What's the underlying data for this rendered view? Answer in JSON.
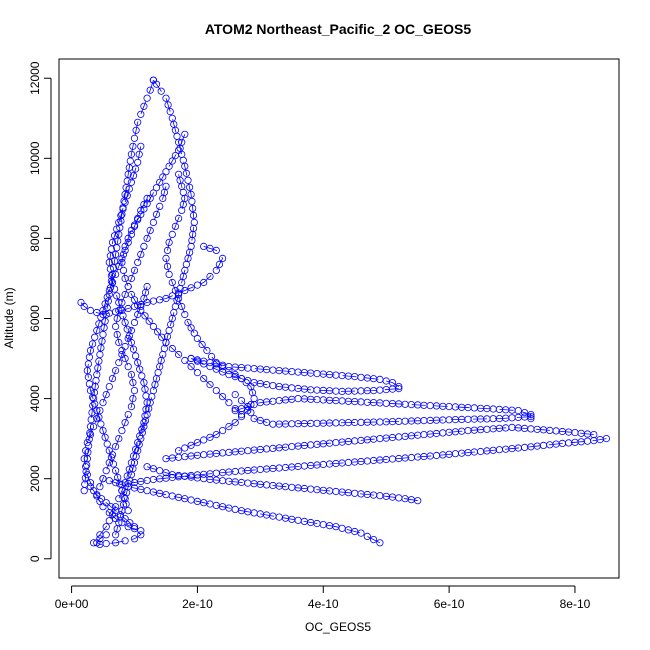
{
  "chart_data": {
    "type": "scatter",
    "title": "ATOM2 Northeast_Pacific_2 OC_GEOS5",
    "xlabel": "OC_GEOS5",
    "ylabel": "Altitude (m)",
    "xlim": [
      -2e-11,
      8.7e-10
    ],
    "ylim": [
      -480,
      12480
    ],
    "x_ticks": [
      0,
      2e-10,
      4e-10,
      6e-10,
      8e-10
    ],
    "x_tick_labels": [
      "0e+00",
      "2e-10",
      "4e-10",
      "6e-10",
      "8e-10"
    ],
    "y_ticks": [
      0,
      2000,
      4000,
      6000,
      8000,
      10000,
      12000
    ],
    "y_tick_labels": [
      "0",
      "2000",
      "4000",
      "6000",
      "8000",
      "10000",
      "12000"
    ],
    "marker": "open-circle",
    "line_style": "dashed",
    "color": "#0000ff",
    "grid": false,
    "legend": "none",
    "series": [
      {
        "x": [
          4.9e-10,
          4.8e-10,
          4.7e-10,
          4.6e-10,
          4.4e-10,
          4.2e-10,
          3.9e-10,
          3.6e-10,
          3.3e-10,
          3e-10,
          2.7e-10,
          2.4e-10,
          2.1e-10,
          1.8e-10,
          1.5e-10,
          1.2e-10,
          9e-11,
          7e-11,
          5e-11
        ],
        "y": [
          400,
          480,
          560,
          640,
          720,
          800,
          880,
          960,
          1040,
          1120,
          1200,
          1300,
          1400,
          1500,
          1600,
          1700,
          1800,
          1900,
          2000
        ]
      },
      {
        "x": [
          5.5e-10,
          5.3e-10,
          5e-10,
          4.6e-10,
          4.2e-10,
          3.8e-10,
          3.4e-10,
          3e-10,
          2.6e-10,
          2.2e-10,
          1.9e-10,
          1.6e-10,
          1.4e-10,
          1.2e-10
        ],
        "y": [
          1450,
          1500,
          1560,
          1620,
          1680,
          1740,
          1800,
          1860,
          1920,
          1980,
          2040,
          2100,
          2200,
          2300
        ]
      },
      {
        "x": [
          8.5e-10,
          8.3e-10,
          7.8e-10,
          7.2e-10,
          6.5e-10,
          5.8e-10,
          5e-10,
          4.2e-10,
          3.4e-10,
          2.6e-10,
          1.9e-10,
          1.3e-10,
          9e-11
        ],
        "y": [
          3000,
          2950,
          2880,
          2780,
          2680,
          2580,
          2480,
          2380,
          2280,
          2180,
          2080,
          1980,
          1880
        ]
      },
      {
        "x": [
          8.3e-10,
          8e-10,
          7.5e-10,
          7e-10,
          6.3e-10,
          5.6e-10,
          4.9e-10,
          4.2e-10,
          3.5e-10,
          2.8e-10,
          2.1e-10,
          1.5e-10
        ],
        "y": [
          3100,
          3150,
          3220,
          3280,
          3200,
          3100,
          3000,
          2900,
          2800,
          2700,
          2600,
          2500
        ]
      },
      {
        "x": [
          7.3e-10,
          7.3e-10,
          7.1e-10,
          6.6e-10,
          6e-10,
          5.4e-10,
          4.8e-10,
          4.2e-10,
          3.6e-10,
          3e-10,
          2.6e-10
        ],
        "y": [
          3500,
          3600,
          3700,
          3750,
          3800,
          3850,
          3900,
          3950,
          4000,
          3900,
          3700
        ]
      },
      {
        "x": [
          7.3e-10,
          6.8e-10,
          6.2e-10,
          5.6e-10,
          5e-10,
          4.4e-10,
          3.8e-10,
          3.2e-10,
          2.9e-10,
          2.8e-10,
          2.6e-10
        ],
        "y": [
          3550,
          3500,
          3480,
          3450,
          3420,
          3400,
          3380,
          3360,
          3500,
          3800,
          4100
        ]
      },
      {
        "x": [
          5.2e-10,
          5.1e-10,
          4.9e-10,
          4.5e-10,
          4.1e-10,
          3.7e-10,
          3.3e-10,
          2.9e-10,
          2.5e-10,
          2.2e-10,
          1.9e-10
        ],
        "y": [
          4300,
          4400,
          4480,
          4550,
          4600,
          4650,
          4700,
          4750,
          4800,
          4900,
          5000
        ]
      },
      {
        "x": [
          5.2e-10,
          4.8e-10,
          4.3e-10,
          3.8e-10,
          3.3e-10,
          2.9e-10,
          2.5e-10,
          2.2e-10,
          1.9e-10
        ],
        "y": [
          4250,
          4200,
          4180,
          4220,
          4300,
          4400,
          4600,
          4800,
          5000
        ]
      },
      {
        "x": [
          2.1e-10,
          2.3e-10,
          2.4e-10,
          2.3e-10,
          2.1e-10,
          1.8e-10,
          1.5e-10,
          1.2e-10,
          1e-10,
          8e-11,
          5e-11,
          3e-11,
          2e-11,
          1.5e-11
        ],
        "y": [
          7800,
          7700,
          7500,
          7200,
          6900,
          6700,
          6500,
          6400,
          6300,
          6200,
          6100,
          6200,
          6300,
          6400
        ]
      },
      {
        "x": [
          1.3e-10,
          1.25e-10,
          1.15e-10,
          1.05e-10,
          1e-10,
          9.5e-11,
          9e-11,
          8.5e-11,
          8e-11,
          7.5e-11,
          7e-11,
          6.5e-11,
          6e-11,
          5.5e-11,
          5e-11,
          4.5e-11,
          4e-11,
          3.5e-11,
          3e-11,
          2.5e-11,
          2e-11
        ],
        "y": [
          11950,
          11700,
          11300,
          10900,
          10500,
          10100,
          9600,
          9100,
          8600,
          8100,
          7600,
          7100,
          6600,
          6100,
          5600,
          5100,
          4600,
          4000,
          3300,
          2500,
          1700
        ]
      },
      {
        "x": [
          1.3e-10,
          1.35e-10,
          1.5e-10,
          1.6e-10,
          1.7e-10,
          1.8e-10,
          1.9e-10,
          1.95e-10,
          1.9e-10,
          1.8e-10,
          1.7e-10,
          1.6e-10,
          1.5e-10,
          1.4e-10,
          1.3e-10,
          1.2e-10,
          1.1e-10,
          1e-10,
          9e-11,
          8e-11,
          7e-11
        ],
        "y": [
          11950,
          11850,
          11500,
          11000,
          10400,
          9800,
          9100,
          8400,
          7800,
          7200,
          6600,
          6000,
          5400,
          4800,
          4200,
          3600,
          3000,
          2400,
          1800,
          1200,
          600
        ]
      },
      {
        "x": [
          1.1e-10,
          1.05e-10,
          9.5e-11,
          8.5e-11,
          7.5e-11,
          6.5e-11,
          6e-11,
          6.5e-11,
          7.5e-11,
          8.5e-11,
          9.5e-11,
          1.05e-10,
          1.15e-10,
          1.2e-10,
          1.15e-10,
          1.05e-10,
          9.5e-11,
          8.5e-11,
          7.5e-11,
          6.5e-11,
          5.5e-11,
          4.5e-11,
          3.5e-11
        ],
        "y": [
          10300,
          9900,
          9400,
          8900,
          8400,
          7900,
          7400,
          6900,
          6400,
          5900,
          5400,
          4900,
          4400,
          3900,
          3400,
          2900,
          2400,
          1900,
          1500,
          1100,
          800,
          600,
          400
        ]
      },
      {
        "x": [
          1.7e-10,
          1.75e-10,
          1.8e-10,
          1.75e-10,
          1.65e-10,
          1.55e-10,
          1.5e-10,
          1.55e-10,
          1.65e-10,
          1.75e-10,
          1.85e-10,
          2e-10,
          2.15e-10,
          2.3e-10,
          2.5e-10,
          2.7e-10,
          2.85e-10,
          2.9e-10,
          2.8e-10,
          2.6e-10,
          2.3e-10,
          2e-10,
          1.7e-10
        ],
        "y": [
          9600,
          9300,
          9000,
          8700,
          8300,
          7900,
          7500,
          7100,
          6700,
          6300,
          5900,
          5500,
          5200,
          4900,
          4700,
          4500,
          4300,
          4000,
          3700,
          3400,
          3100,
          2900,
          2700
        ]
      },
      {
        "x": [
          1.5e-10,
          1.45e-10,
          1.35e-10,
          1.25e-10,
          1.15e-10,
          1.05e-10,
          9.5e-11,
          8.5e-11,
          7.5e-11,
          7e-11,
          7.5e-11,
          8.5e-11,
          9.5e-11,
          1e-10,
          9.5e-11,
          8.5e-11,
          7.5e-11,
          6.5e-11,
          5.5e-11,
          4.5e-11
        ],
        "y": [
          9300,
          9000,
          8600,
          8200,
          7800,
          7400,
          7000,
          6600,
          6200,
          5800,
          5400,
          5000,
          4600,
          4200,
          3800,
          3400,
          3000,
          2600,
          2200,
          1800
        ]
      },
      {
        "x": [
          1.2e-10,
          1.1e-10,
          1e-10,
          9e-11,
          8e-11,
          7e-11,
          6e-11,
          5e-11,
          4e-11,
          3e-11,
          2.5e-11,
          3e-11,
          4e-11,
          5e-11,
          6e-11,
          7e-11,
          8e-11,
          9e-11
        ],
        "y": [
          9000,
          8700,
          8300,
          7900,
          7500,
          7100,
          6700,
          6200,
          5700,
          5200,
          4700,
          4200,
          3700,
          3200,
          2700,
          2200,
          1700,
          1200
        ]
      },
      {
        "x": [
          1.8e-10,
          1.7e-10,
          1.55e-10,
          1.4e-10,
          1.25e-10,
          1.1e-10,
          9.5e-11,
          8.5e-11,
          8e-11,
          8.5e-11,
          9.5e-11,
          1.1e-10,
          1.3e-10,
          1.5e-10,
          1.7e-10,
          1.9e-10,
          2.1e-10,
          2.3e-10,
          2.5e-10,
          2.7e-10
        ],
        "y": [
          10600,
          10200,
          9800,
          9400,
          9000,
          8600,
          8200,
          7800,
          7400,
          7000,
          6600,
          6200,
          5800,
          5400,
          5100,
          4800,
          4500,
          4200,
          3900,
          3600
        ]
      },
      {
        "x": [
          1.2e-10,
          1.15e-10,
          1.05e-10,
          9.5e-11,
          8.5e-11,
          7.5e-11,
          6.5e-11,
          5.5e-11,
          4.5e-11,
          3.5e-11,
          2.5e-11,
          2e-11,
          2.5e-11,
          3.5e-11,
          5e-11,
          7e-11,
          9e-11,
          1.1e-10
        ],
        "y": [
          6800,
          6500,
          6100,
          5700,
          5300,
          4900,
          4500,
          4100,
          3700,
          3300,
          2900,
          2500,
          2100,
          1700,
          1300,
          1000,
          800,
          700
        ]
      },
      {
        "x": [
          3e-11,
          4e-11,
          5.5e-11,
          7e-11,
          8.5e-11,
          1e-10,
          1.1e-10,
          1e-10,
          8.5e-11,
          7e-11,
          5.5e-11,
          4.5e-11,
          4e-11,
          4.5e-11,
          5.5e-11
        ],
        "y": [
          1800,
          1600,
          1400,
          1200,
          1000,
          800,
          600,
          500,
          450,
          400,
          380,
          360,
          400,
          500,
          600
        ]
      }
    ]
  }
}
